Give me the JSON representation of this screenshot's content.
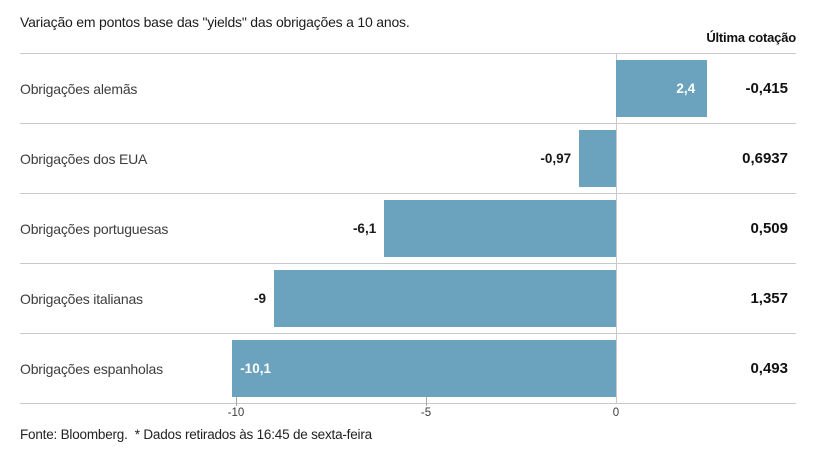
{
  "header": {
    "title": "Variação em pontos base das \"yields\" das obrigações a 10 anos.",
    "quote_column_label": "Última cotação"
  },
  "footer": {
    "text": "Fonte: Bloomberg.  * Dados retirados às 16:45 de sexta-feira"
  },
  "colors": {
    "bar": "#6ba2be",
    "bar_label_inside": "#ffffff",
    "bar_label_outside": "#1a1a1a",
    "separator": "#c9c9c9",
    "zero_line": "#c9c9c9"
  },
  "chart_data": {
    "type": "bar",
    "orientation": "horizontal",
    "title": "Variação em pontos base das \"yields\" das obrigações a 10 anos.",
    "unit": "pontos base",
    "categories": [
      "Obrigações alemãs",
      "Obrigações dos EUA",
      "Obrigações portuguesas",
      "Obrigações italianas",
      "Obrigações espanholas"
    ],
    "values": [
      2.4,
      -0.97,
      -6.1,
      -9,
      -10.1
    ],
    "value_labels": [
      "2,4",
      "-0,97",
      "-6,1",
      "-9",
      "-10,1"
    ],
    "value_label_inside": [
      true,
      false,
      false,
      false,
      true
    ],
    "quote_column_label": "Última cotação",
    "quote_values": [
      "-0,415",
      "0,6937",
      "0,509",
      "1,357",
      "0,493"
    ],
    "xticks": [
      -10,
      -5,
      0
    ],
    "xtick_labels": [
      "-10",
      "-5",
      "0"
    ],
    "xlim": [
      -15.7,
      4.7
    ],
    "grid": "none",
    "legend": "none"
  }
}
